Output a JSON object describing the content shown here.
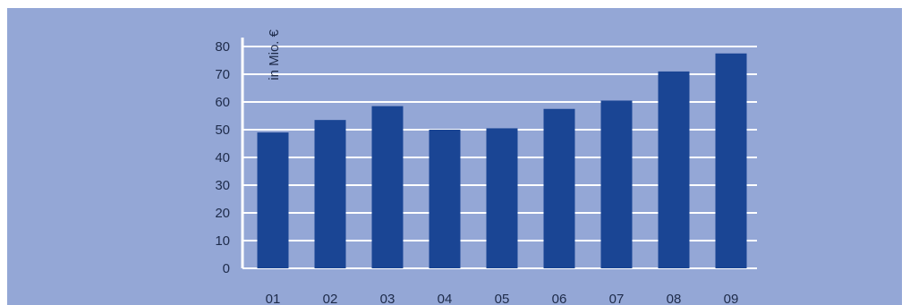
{
  "colors": {
    "background": "#94a7d6",
    "bar": "#1a4594",
    "grid": "#ffffff",
    "text": "#1e2b4a"
  },
  "chart_data": {
    "type": "bar",
    "categories": [
      "01",
      "02",
      "03",
      "04",
      "05",
      "06",
      "07",
      "08",
      "09"
    ],
    "values": [
      49,
      53.5,
      58.5,
      50,
      50.5,
      57.5,
      60.5,
      71,
      77.5
    ],
    "ylabel": "in Mio. €",
    "ylim": [
      0,
      80
    ],
    "yticks": [
      "0",
      "10",
      "20",
      "30",
      "40",
      "50",
      "60",
      "70",
      "80"
    ],
    "grid": true,
    "legend": "none"
  }
}
